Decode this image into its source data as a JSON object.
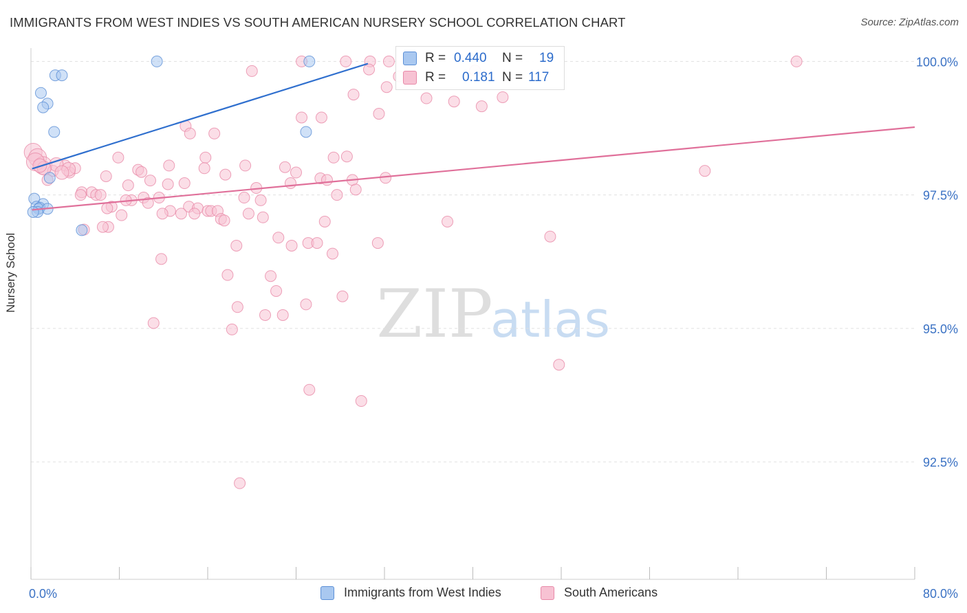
{
  "title": "IMMIGRANTS FROM WEST INDIES VS SOUTH AMERICAN NURSERY SCHOOL CORRELATION CHART",
  "source": "Source: ZipAtlas.com",
  "watermark": {
    "zip": "ZIP",
    "atlas": "atlas"
  },
  "colors": {
    "blue_fill": "#a9c8f0",
    "blue_stroke": "#5b8fd6",
    "blue_line": "#2f6fce",
    "pink_fill": "#f7c2d3",
    "pink_stroke": "#e889a8",
    "pink_line": "#e0709a",
    "tick_label": "#3b72c4",
    "grid": "#e0e0e0"
  },
  "legend": {
    "r_label": "R =",
    "n_label": "N =",
    "series": [
      {
        "name": "Immigrants from West Indies",
        "r": "0.440",
        "n": "19",
        "color": "#a9c8f0",
        "border": "#5b8fd6"
      },
      {
        "name": "South Americans",
        "r": "0.181",
        "n": "117",
        "color": "#f7c2d3",
        "border": "#e889a8"
      }
    ]
  },
  "chart_data": {
    "type": "scatter",
    "title": "IMMIGRANTS FROM WEST INDIES VS SOUTH AMERICAN NURSERY SCHOOL CORRELATION CHART",
    "xlabel": "",
    "ylabel": "Nursery School",
    "xlim": [
      0,
      80
    ],
    "ylim": [
      90.3,
      100.25
    ],
    "x_tick_labels": [
      {
        "value": 0,
        "label": "0.0%"
      },
      {
        "value": 80,
        "label": "80.0%"
      }
    ],
    "y_ticks": [
      {
        "value": 100.0,
        "label": "100.0%"
      },
      {
        "value": 97.5,
        "label": "97.5%"
      },
      {
        "value": 95.0,
        "label": "95.0%"
      },
      {
        "value": 92.5,
        "label": "92.5%"
      }
    ],
    "series": [
      {
        "name": "Immigrants from West Indies",
        "trend": {
          "x0": 0.1,
          "y0": 97.99,
          "x1": 30.5,
          "y1": 99.96
        },
        "points": [
          [
            11.4,
            100.0
          ],
          [
            25.2,
            100.0
          ],
          [
            2.2,
            99.74
          ],
          [
            2.8,
            99.74
          ],
          [
            0.9,
            99.41
          ],
          [
            1.5,
            99.21
          ],
          [
            1.1,
            99.14
          ],
          [
            2.1,
            98.68
          ],
          [
            24.9,
            98.68
          ],
          [
            1.7,
            97.82
          ],
          [
            0.3,
            97.43
          ],
          [
            1.1,
            97.33
          ],
          [
            0.5,
            97.28
          ],
          [
            0.8,
            97.26
          ],
          [
            0.7,
            97.24
          ],
          [
            1.5,
            97.24
          ],
          [
            0.6,
            97.18
          ],
          [
            0.2,
            97.18
          ],
          [
            4.6,
            96.84
          ]
        ]
      },
      {
        "name": "South Americans",
        "trend": {
          "x0": 0.1,
          "y0": 97.22,
          "x1": 80.0,
          "y1": 98.77
        },
        "points": [
          [
            24.5,
            100.0
          ],
          [
            28.5,
            100.0
          ],
          [
            30.7,
            100.0
          ],
          [
            32.4,
            100.0
          ],
          [
            69.3,
            100.0
          ],
          [
            20.0,
            99.82
          ],
          [
            30.6,
            99.85
          ],
          [
            33.3,
            99.72
          ],
          [
            40.2,
            99.83
          ],
          [
            32.2,
            99.52
          ],
          [
            29.2,
            99.38
          ],
          [
            35.8,
            99.31
          ],
          [
            38.3,
            99.25
          ],
          [
            42.7,
            99.33
          ],
          [
            40.8,
            99.16
          ],
          [
            31.5,
            99.02
          ],
          [
            24.5,
            98.95
          ],
          [
            26.3,
            98.95
          ],
          [
            14.0,
            98.79
          ],
          [
            14.4,
            98.65
          ],
          [
            16.6,
            98.65
          ],
          [
            0.2,
            98.3
          ],
          [
            0.6,
            98.2
          ],
          [
            1.1,
            98.05
          ],
          [
            0.4,
            98.12
          ],
          [
            3.1,
            98.05
          ],
          [
            2.0,
            97.95
          ],
          [
            3.5,
            97.92
          ],
          [
            4.0,
            98.0
          ],
          [
            7.9,
            98.2
          ],
          [
            12.5,
            98.05
          ],
          [
            15.8,
            98.2
          ],
          [
            19.4,
            98.05
          ],
          [
            27.4,
            98.2
          ],
          [
            28.6,
            98.22
          ],
          [
            6.8,
            97.85
          ],
          [
            9.7,
            97.97
          ],
          [
            10.0,
            97.93
          ],
          [
            15.7,
            98.0
          ],
          [
            17.6,
            97.88
          ],
          [
            23.0,
            98.02
          ],
          [
            24.0,
            97.92
          ],
          [
            1.5,
            97.78
          ],
          [
            8.8,
            97.68
          ],
          [
            10.8,
            97.77
          ],
          [
            12.4,
            97.7
          ],
          [
            13.9,
            97.72
          ],
          [
            20.4,
            97.63
          ],
          [
            23.5,
            97.72
          ],
          [
            26.2,
            97.81
          ],
          [
            26.8,
            97.78
          ],
          [
            29.1,
            97.78
          ],
          [
            29.4,
            97.6
          ],
          [
            4.6,
            97.55
          ],
          [
            5.5,
            97.55
          ],
          [
            5.9,
            97.5
          ],
          [
            6.3,
            97.5
          ],
          [
            4.5,
            97.5
          ],
          [
            9.1,
            97.4
          ],
          [
            10.2,
            97.45
          ],
          [
            8.6,
            97.4
          ],
          [
            10.6,
            97.35
          ],
          [
            11.6,
            97.45
          ],
          [
            7.3,
            97.28
          ],
          [
            6.9,
            97.25
          ],
          [
            12.6,
            97.2
          ],
          [
            14.3,
            97.28
          ],
          [
            15.1,
            97.25
          ],
          [
            16.0,
            97.2
          ],
          [
            16.3,
            97.2
          ],
          [
            16.9,
            97.2
          ],
          [
            11.9,
            97.15
          ],
          [
            13.6,
            97.15
          ],
          [
            14.8,
            97.15
          ],
          [
            8.2,
            97.12
          ],
          [
            17.2,
            97.05
          ],
          [
            17.5,
            97.02
          ],
          [
            19.3,
            97.45
          ],
          [
            20.8,
            97.4
          ],
          [
            19.7,
            97.15
          ],
          [
            21.0,
            97.08
          ],
          [
            27.7,
            97.5
          ],
          [
            37.7,
            97.0
          ],
          [
            26.6,
            97.0
          ],
          [
            7.0,
            96.9
          ],
          [
            6.5,
            96.9
          ],
          [
            4.8,
            96.85
          ],
          [
            22.4,
            96.7
          ],
          [
            25.1,
            96.6
          ],
          [
            18.6,
            96.55
          ],
          [
            23.6,
            96.55
          ],
          [
            25.9,
            96.6
          ],
          [
            31.4,
            96.6
          ],
          [
            27.3,
            96.4
          ],
          [
            11.8,
            96.3
          ],
          [
            17.8,
            96.0
          ],
          [
            21.7,
            95.98
          ],
          [
            22.2,
            95.7
          ],
          [
            28.2,
            95.6
          ],
          [
            18.7,
            95.4
          ],
          [
            24.9,
            95.45
          ],
          [
            21.2,
            95.25
          ],
          [
            22.8,
            95.25
          ],
          [
            11.1,
            95.1
          ],
          [
            18.2,
            94.98
          ],
          [
            25.2,
            93.85
          ],
          [
            29.9,
            93.64
          ],
          [
            47.8,
            94.32
          ],
          [
            47.0,
            96.72
          ],
          [
            61.0,
            97.95
          ],
          [
            18.9,
            92.1
          ],
          [
            32.1,
            97.82
          ],
          [
            2.3,
            98.07
          ],
          [
            1.2,
            98.0
          ],
          [
            0.8,
            98.05
          ],
          [
            3.4,
            97.98
          ],
          [
            2.8,
            97.92
          ]
        ]
      }
    ]
  }
}
